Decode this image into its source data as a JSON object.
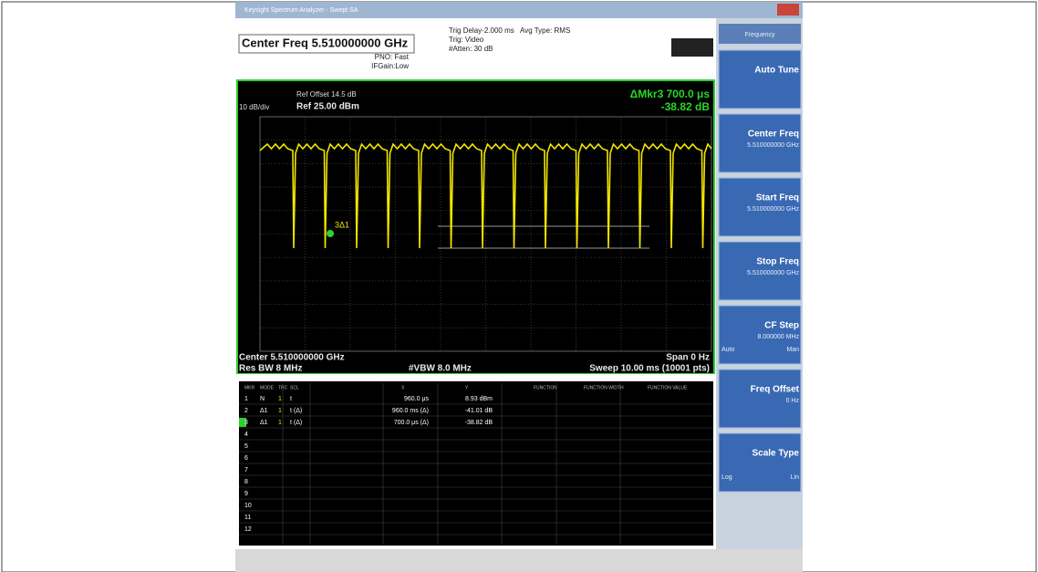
{
  "title_bar": "Keysight Spectrum Analyzer - Swept SA",
  "header": {
    "center_freq": "Center Freq 5.510000000 GHz",
    "pno": "PNO: Fast",
    "ifgain": "IFGain:Low",
    "trig_delay": "Trig Delay-2.000 ms",
    "trig": "Trig: Video",
    "atten": "#Atten: 30 dB",
    "avg_type": "Avg Type: RMS"
  },
  "graph": {
    "ref_offset": "Ref Offset 14.5 dB",
    "ref": "Ref 25.00 dBm",
    "scale": "10 dB/div",
    "marker_readout": "ΔMkr3 700.0 μs",
    "marker_value": "-38.82 dB",
    "marker_label": "3Δ1",
    "center": "Center 5.510000000 GHz",
    "span": "Span 0 Hz",
    "res_bw": "Res BW 8 MHz",
    "vbw": "#VBW 8.0 MHz",
    "sweep": "Sweep 10.00 ms (10001 pts)"
  },
  "marker_table": {
    "columns": [
      "MKR",
      "MODE",
      "TRC",
      "SCL",
      "X",
      "Y",
      "FUNCTION",
      "FUNCTION WIDTH",
      "FUNCTION VALUE"
    ],
    "rows": [
      [
        "1",
        "N",
        "1",
        "t",
        "960.0 μs",
        "8.93 dBm"
      ],
      [
        "2",
        "Δ1",
        "1",
        "t (Δ)",
        "960.0 ms (Δ)",
        "-41.01 dB"
      ],
      [
        "3",
        "Δ1",
        "1",
        "t (Δ)",
        "700.0 μs (Δ)",
        "-38.82 dB"
      ],
      [
        "4"
      ],
      [
        "5"
      ],
      [
        "6"
      ],
      [
        "7"
      ],
      [
        "8"
      ],
      [
        "9"
      ],
      [
        "10"
      ],
      [
        "11"
      ],
      [
        "12"
      ]
    ]
  },
  "softkeys": {
    "menu": "Frequency",
    "keys": [
      {
        "label": "Auto Tune"
      },
      {
        "label": "Center Freq",
        "value": "5.510000000 GHz"
      },
      {
        "label": "Start Freq",
        "value": "5.510000000 GHz"
      },
      {
        "label": "Stop Freq",
        "value": "5.510000000 GHz"
      },
      {
        "label": "CF Step",
        "value": "8.000000 MHz",
        "left": "Auto",
        "right": "Man"
      },
      {
        "label": "Freq Offset",
        "value": "0 Hz"
      },
      {
        "label": "Scale Type",
        "left": "Log",
        "right": "Lin"
      }
    ]
  }
}
